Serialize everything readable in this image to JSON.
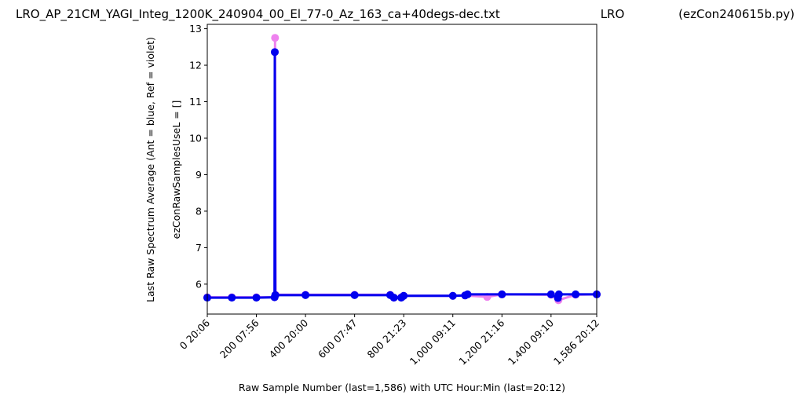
{
  "chart_data": {
    "type": "line",
    "title": "LRO_AP_21CM_YAGI_Integ_1200K_240904_00_El_77-0_Az_163_ca+40degs-dec.txt",
    "title_center": "LRO",
    "title_right": "(ezCon240615b.py)",
    "x_label": "Raw Sample Number (last=1,586) with UTC Hour:Min (last=20:12)",
    "y_label": "Last Raw Spectrum Average    (Ant = blue, Ref = violet)",
    "y_label_2": "ezConRawSamplesUseL = []",
    "xlim": [
      0,
      1586
    ],
    "ylim": [
      5.18,
      13.12
    ],
    "xticks": [
      {
        "value": 0,
        "label": "0  20:06"
      },
      {
        "value": 200,
        "label": "200  07:56"
      },
      {
        "value": 400,
        "label": "400  20:00"
      },
      {
        "value": 600,
        "label": "600  07:47"
      },
      {
        "value": 800,
        "label": "800  21:23"
      },
      {
        "value": 1000,
        "label": "1,000  09:11"
      },
      {
        "value": 1200,
        "label": "1,200  21:16"
      },
      {
        "value": 1400,
        "label": "1,400  09:10"
      },
      {
        "value": 1586,
        "label": "1,586  20:12"
      }
    ],
    "yticks": [
      6,
      7,
      8,
      9,
      10,
      11,
      12,
      13
    ],
    "series": [
      {
        "name": "Ref",
        "color": "#ee82ee",
        "x": [
          0,
          100,
          200,
          274,
          276,
          278,
          400,
          600,
          745,
          760,
          790,
          800,
          1000,
          1050,
          1140,
          1200,
          1400,
          1430,
          1500,
          1586
        ],
        "values": [
          5.64,
          5.64,
          5.64,
          5.64,
          12.75,
          5.71,
          5.71,
          5.71,
          5.71,
          5.63,
          5.64,
          5.68,
          5.68,
          5.69,
          5.65,
          5.72,
          5.71,
          5.56,
          5.71,
          5.72
        ]
      },
      {
        "name": "Ant",
        "color": "#0000ee",
        "x": [
          0,
          100,
          200,
          274,
          275,
          277,
          400,
          600,
          745,
          760,
          790,
          800,
          1000,
          1050,
          1060,
          1200,
          1400,
          1428,
          1432,
          1500,
          1586
        ],
        "values": [
          5.63,
          5.63,
          5.63,
          5.64,
          12.36,
          5.7,
          5.7,
          5.7,
          5.7,
          5.63,
          5.63,
          5.68,
          5.68,
          5.69,
          5.72,
          5.72,
          5.72,
          5.62,
          5.72,
          5.72,
          5.72
        ]
      }
    ]
  }
}
